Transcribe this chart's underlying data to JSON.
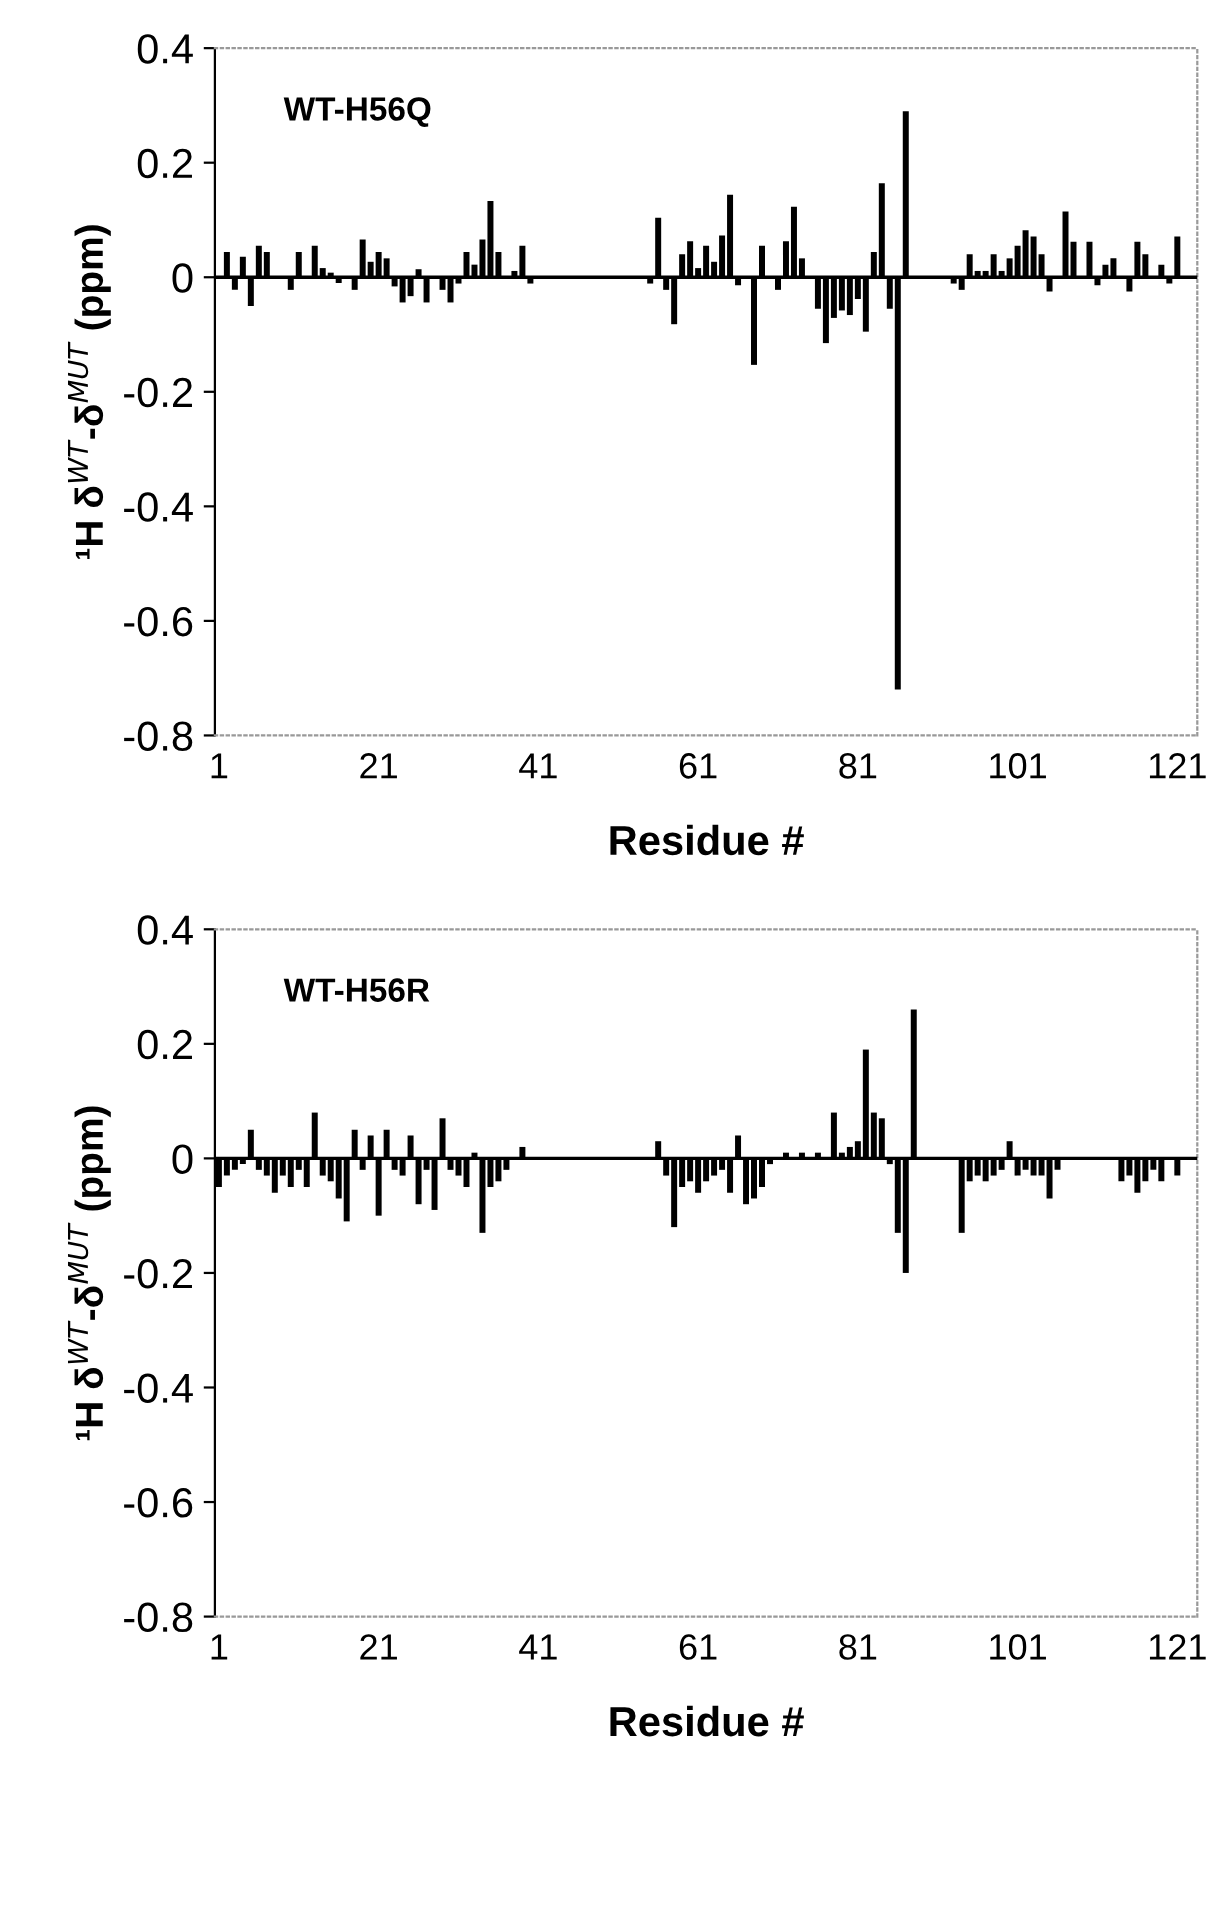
{
  "chart_data": [
    {
      "type": "bar",
      "title": "WT-H56Q",
      "xlabel": "Residue #",
      "ylabel": "¹H δ$^{WT}$-δ$^{MUT}$ (ppm)",
      "color": "#000000",
      "ylim": [
        -0.8,
        0.4
      ],
      "yticks": [
        -0.8,
        -0.6,
        -0.4,
        -0.2,
        0,
        0.2,
        0.4
      ],
      "legend": false,
      "categories": [
        "1",
        null,
        null,
        null,
        null,
        null,
        null,
        null,
        null,
        null,
        null,
        null,
        null,
        null,
        null,
        null,
        null,
        null,
        null,
        null,
        "21",
        null,
        null,
        null,
        null,
        null,
        null,
        null,
        null,
        null,
        null,
        null,
        null,
        null,
        null,
        null,
        null,
        null,
        null,
        null,
        "41",
        null,
        null,
        null,
        null,
        null,
        null,
        null,
        null,
        null,
        null,
        null,
        null,
        null,
        null,
        null,
        null,
        null,
        null,
        null,
        "61",
        null,
        null,
        null,
        null,
        null,
        null,
        null,
        null,
        null,
        null,
        null,
        null,
        null,
        null,
        null,
        null,
        null,
        null,
        null,
        "81",
        null,
        null,
        null,
        null,
        null,
        null,
        null,
        null,
        null,
        null,
        null,
        null,
        null,
        null,
        null,
        null,
        null,
        null,
        null,
        "101",
        null,
        null,
        null,
        null,
        null,
        null,
        null,
        null,
        null,
        null,
        null,
        null,
        null,
        null,
        null,
        null,
        null,
        null,
        null,
        "121",
        null,
        null
      ],
      "values": [
        null,
        0.044,
        -0.022,
        0.036,
        -0.05,
        0.055,
        0.044,
        null,
        null,
        -0.022,
        0.044,
        null,
        0.055,
        0.016,
        0.008,
        -0.01,
        null,
        -0.022,
        0.066,
        0.027,
        0.044,
        0.033,
        -0.016,
        -0.044,
        -0.033,
        0.014,
        -0.044,
        null,
        -0.022,
        -0.044,
        -0.011,
        0.044,
        0.022,
        0.066,
        0.133,
        0.044,
        null,
        0.011,
        0.055,
        -0.011,
        null,
        null,
        null,
        null,
        null,
        null,
        null,
        null,
        null,
        null,
        null,
        null,
        null,
        null,
        -0.011,
        0.104,
        -0.022,
        -0.082,
        0.04,
        0.063,
        0.016,
        0.055,
        0.027,
        0.073,
        0.144,
        -0.014,
        null,
        -0.153,
        0.055,
        null,
        -0.022,
        0.063,
        0.123,
        0.033,
        null,
        -0.055,
        -0.115,
        -0.071,
        -0.058,
        -0.066,
        -0.038,
        -0.095,
        0.044,
        0.164,
        -0.055,
        -0.72,
        0.29,
        null,
        null,
        null,
        null,
        null,
        -0.011,
        -0.022,
        0.04,
        0.011,
        0.011,
        0.04,
        0.011,
        0.033,
        0.055,
        0.082,
        0.071,
        0.04,
        -0.025,
        null,
        0.115,
        0.062,
        null,
        0.062,
        -0.014,
        0.022,
        0.033,
        null,
        -0.025,
        0.062,
        0.04,
        null,
        0.022,
        -0.011,
        0.071,
        null,
        null
      ]
    },
    {
      "type": "bar",
      "title": "WT-H56R",
      "xlabel": "Residue #",
      "ylabel": "¹H δ$^{WT}$-δ$^{MUT}$ (ppm)",
      "color": "#000000",
      "ylim": [
        -0.8,
        0.4
      ],
      "yticks": [
        -0.8,
        -0.6,
        -0.4,
        -0.2,
        0,
        0.2,
        0.4
      ],
      "legend": false,
      "categories": [
        "1",
        null,
        null,
        null,
        null,
        null,
        null,
        null,
        null,
        null,
        null,
        null,
        null,
        null,
        null,
        null,
        null,
        null,
        null,
        null,
        "21",
        null,
        null,
        null,
        null,
        null,
        null,
        null,
        null,
        null,
        null,
        null,
        null,
        null,
        null,
        null,
        null,
        null,
        null,
        null,
        "41",
        null,
        null,
        null,
        null,
        null,
        null,
        null,
        null,
        null,
        null,
        null,
        null,
        null,
        null,
        null,
        null,
        null,
        null,
        null,
        "61",
        null,
        null,
        null,
        null,
        null,
        null,
        null,
        null,
        null,
        null,
        null,
        null,
        null,
        null,
        null,
        null,
        null,
        null,
        null,
        "81",
        null,
        null,
        null,
        null,
        null,
        null,
        null,
        null,
        null,
        null,
        null,
        null,
        null,
        null,
        null,
        null,
        null,
        null,
        null,
        "101",
        null,
        null,
        null,
        null,
        null,
        null,
        null,
        null,
        null,
        null,
        null,
        null,
        null,
        null,
        null,
        null,
        null,
        null,
        null,
        "121",
        null,
        null
      ],
      "values": [
        -0.05,
        -0.03,
        -0.02,
        -0.01,
        0.05,
        -0.02,
        -0.03,
        -0.06,
        -0.03,
        -0.05,
        -0.02,
        -0.05,
        0.08,
        -0.03,
        -0.04,
        -0.07,
        -0.11,
        0.05,
        -0.02,
        0.04,
        -0.1,
        0.05,
        -0.02,
        -0.03,
        0.04,
        -0.08,
        -0.02,
        -0.09,
        0.07,
        -0.02,
        -0.03,
        -0.05,
        0.01,
        -0.13,
        -0.05,
        -0.04,
        -0.02,
        null,
        0.02,
        null,
        null,
        null,
        null,
        null,
        null,
        null,
        null,
        null,
        null,
        null,
        null,
        null,
        null,
        null,
        null,
        0.03,
        -0.03,
        -0.12,
        -0.05,
        -0.04,
        -0.06,
        -0.04,
        -0.03,
        -0.02,
        -0.06,
        0.04,
        -0.08,
        -0.07,
        -0.05,
        -0.01,
        null,
        0.01,
        null,
        0.01,
        null,
        0.01,
        null,
        0.08,
        0.01,
        0.02,
        0.03,
        0.19,
        0.08,
        0.07,
        -0.01,
        -0.13,
        -0.2,
        0.26,
        null,
        null,
        null,
        null,
        null,
        -0.13,
        -0.04,
        -0.03,
        -0.04,
        -0.03,
        -0.02,
        0.03,
        -0.03,
        -0.02,
        -0.03,
        -0.03,
        -0.07,
        -0.02,
        null,
        null,
        null,
        null,
        null,
        null,
        null,
        -0.04,
        -0.03,
        -0.06,
        -0.04,
        -0.02,
        -0.04,
        null,
        -0.03,
        null,
        null
      ]
    }
  ]
}
